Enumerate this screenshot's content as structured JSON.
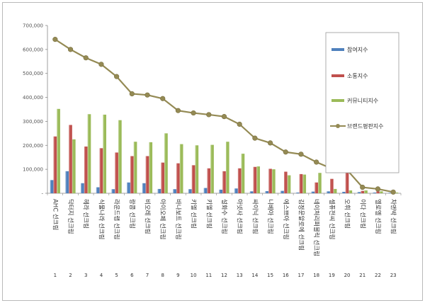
{
  "chart_data": {
    "type": "bar",
    "title": "",
    "xlabel": "",
    "ylabel": "",
    "ylim": [
      0,
      700000
    ],
    "yticks": [
      0,
      100000,
      200000,
      300000,
      400000,
      500000,
      600000,
      700000
    ],
    "ytick_labels": [
      "-",
      "100,000",
      "200,000",
      "300,000",
      "400,000",
      "500,000",
      "600,000",
      "700,000"
    ],
    "grid": false,
    "legend_position": "right",
    "categories": [
      "AHC 선크림",
      "닥터지 선크림",
      "헤라 선크림",
      "식물나라 선크림",
      "라운드랩 선크림",
      "랑콤 선크림",
      "비오레 선크림",
      "아이오페 선크림",
      "바나보트 선크림",
      "키엘 선크림",
      "키엘 선크림",
      "설화수 선크림",
      "아넷사 선크림",
      "싸이닉 선크림",
      "니베아 선크림",
      "에스쁘아 선크림",
      "김정문알로에 선크림",
      "네이처리퍼블릭 선크림",
      "셀퓨전씨 선크림",
      "오휘 선크림",
      "이다 선크림",
      "엘로엘 선크림",
      "차앤박 선크림"
    ],
    "rank_numbers": [
      "1",
      "2",
      "3",
      "4",
      "5",
      "6",
      "7",
      "8",
      "9",
      "10",
      "11",
      "12",
      "13",
      "14",
      "15",
      "16",
      "17",
      "18",
      "19",
      "20",
      "21",
      "22",
      "23"
    ],
    "series": [
      {
        "name": "참여지수",
        "kind": "bar",
        "color": "#4f81bd",
        "values": [
          55000,
          92000,
          42000,
          25000,
          17000,
          45000,
          42000,
          18000,
          17000,
          17000,
          22000,
          15000,
          20000,
          8000,
          9000,
          10000,
          3000,
          7000,
          8000,
          6000,
          5000,
          3000,
          2000
        ]
      },
      {
        "name": "소통지수",
        "kind": "bar",
        "color": "#c0504d",
        "values": [
          237000,
          285000,
          195000,
          188000,
          170000,
          155000,
          155000,
          128000,
          125000,
          117000,
          104000,
          92000,
          104000,
          110000,
          102000,
          90000,
          80000,
          45000,
          60000,
          90000,
          10000,
          8000,
          3000
        ]
      },
      {
        "name": "커뮤니티지수",
        "kind": "bar",
        "color": "#9bbb59",
        "values": [
          352000,
          225000,
          330000,
          328000,
          305000,
          215000,
          213000,
          250000,
          205000,
          200000,
          202000,
          215000,
          165000,
          112000,
          100000,
          75000,
          78000,
          85000,
          18000,
          12000,
          12000,
          8000,
          3000
        ]
      },
      {
        "name": "브랜드평판지수",
        "kind": "line",
        "color": "#948a54",
        "values": [
          642000,
          600000,
          565000,
          538000,
          487000,
          415000,
          410000,
          395000,
          345000,
          335000,
          328000,
          320000,
          288000,
          230000,
          210000,
          172000,
          163000,
          130000,
          103000,
          97000,
          25000,
          18000,
          5000
        ]
      }
    ]
  }
}
